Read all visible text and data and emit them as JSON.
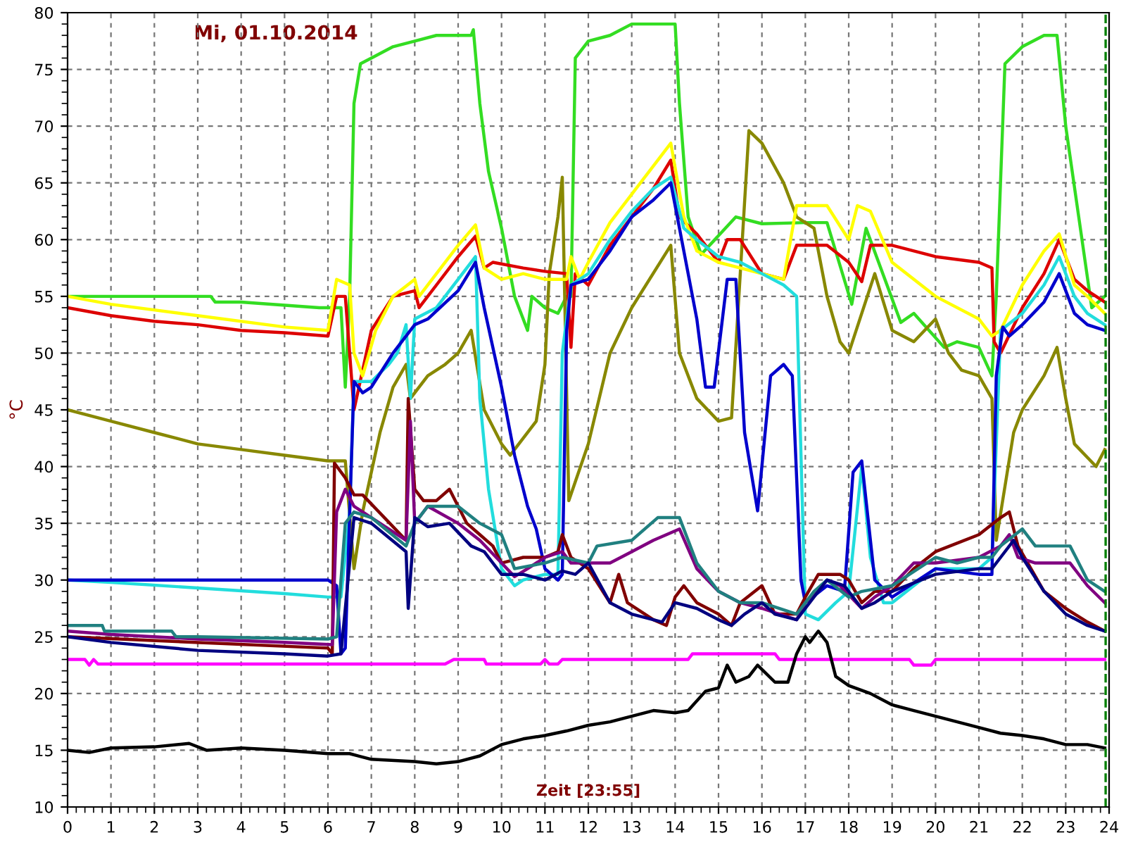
{
  "chart_data": {
    "type": "line",
    "title": "Mi, 01.10.2014",
    "xlabel": "Zeit [23:55]",
    "ylabel": "°C",
    "xlim": [
      0,
      24
    ],
    "ylim": [
      10,
      80
    ],
    "xticks": [
      0,
      1,
      2,
      3,
      4,
      5,
      6,
      7,
      8,
      9,
      10,
      11,
      12,
      13,
      14,
      15,
      16,
      17,
      18,
      19,
      20,
      21,
      22,
      23,
      24
    ],
    "yticks": [
      10,
      15,
      20,
      25,
      30,
      35,
      40,
      45,
      50,
      55,
      60,
      65,
      70,
      75,
      80
    ],
    "grid": true,
    "legend": false,
    "marker": "none",
    "line_style": "solid",
    "ref_lines": [
      {
        "axis": "x",
        "value": 23.92,
        "color": "#008000",
        "line_style": "dashed"
      }
    ],
    "series": [
      {
        "color": "#33dd22",
        "x": [
          0,
          3.3,
          3.4,
          4,
          5.8,
          6.3,
          6.4,
          6.5,
          6.6,
          6.75,
          7,
          7.5,
          8,
          8.5,
          9,
          9.3,
          9.35,
          9.5,
          9.7,
          10,
          10.3,
          10.6,
          10.7,
          11,
          11.3,
          11.5,
          11.6,
          11.7,
          12,
          12.5,
          13,
          14,
          14.1,
          14.3,
          14.6,
          15.4,
          16,
          17,
          17.5,
          18.07,
          18.4,
          19.2,
          19.5,
          20.2,
          20.5,
          21,
          21.3,
          21.4,
          21.6,
          22,
          22.5,
          22.8,
          23,
          23.3,
          23.6,
          23.9
        ],
        "values": [
          55,
          55,
          54.5,
          54.5,
          54,
          54,
          47,
          55,
          72,
          75.5,
          76,
          77,
          77.5,
          78,
          78,
          78,
          78.5,
          72,
          66,
          61,
          55,
          52,
          55,
          54,
          53.5,
          55,
          55,
          76,
          77.5,
          78,
          79,
          79,
          72,
          62,
          58.7,
          62,
          61.4,
          61.5,
          61.5,
          54.3,
          61,
          52.7,
          53.5,
          50.5,
          51,
          50.5,
          48,
          55,
          75.5,
          77,
          78,
          78,
          70,
          62,
          54,
          55
        ]
      },
      {
        "color": "#888800",
        "x": [
          0,
          1,
          2,
          3,
          4,
          5,
          6,
          6.4,
          6.6,
          6.8,
          7.2,
          7.5,
          7.8,
          7.9,
          8.3,
          8.7,
          9,
          9.3,
          9.6,
          10,
          10.2,
          10.8,
          11,
          11.1,
          11.3,
          11.4,
          11.55,
          12,
          12.5,
          13,
          13.9,
          14.1,
          14.5,
          15,
          15.3,
          15.7,
          16,
          16.5,
          16.8,
          17.2,
          17.5,
          17.8,
          18,
          18.6,
          19,
          19.5,
          20,
          20.3,
          20.6,
          21,
          21.3,
          21.4,
          21.8,
          22,
          22.5,
          22.8,
          23,
          23.2,
          23.7,
          23.9
        ],
        "values": [
          45,
          44,
          43,
          42,
          41.5,
          41,
          40.5,
          40.5,
          31,
          36,
          43,
          47,
          49,
          46,
          48,
          49,
          50,
          52,
          45,
          42,
          41,
          44,
          49,
          57,
          62,
          65.5,
          37,
          42,
          50,
          54,
          59.5,
          50,
          46,
          44,
          44.3,
          69.6,
          68.5,
          65,
          62,
          61,
          55,
          51,
          50,
          57,
          52,
          51,
          53,
          50,
          48.5,
          48,
          46,
          33.5,
          43,
          45,
          48,
          50.5,
          46,
          42,
          40,
          41.5
        ]
      },
      {
        "color": "#dd0000",
        "x": [
          0,
          1,
          2,
          3,
          4,
          5,
          6,
          6.2,
          6.4,
          6.6,
          7,
          7.5,
          8,
          8.1,
          8.5,
          9,
          9.4,
          9.6,
          9.8,
          10.5,
          11,
          11.5,
          11.6,
          11.7,
          12,
          12.5,
          13,
          13.5,
          13.9,
          14.1,
          14.5,
          15,
          15.2,
          15.5,
          16,
          16.5,
          16.8,
          17.5,
          18,
          18.3,
          18.5,
          19,
          20,
          21,
          21.3,
          21.35,
          21.5,
          22,
          22.5,
          22.85,
          23.2,
          23.5,
          23.9
        ],
        "values": [
          54,
          53.3,
          52.8,
          52.5,
          52,
          51.8,
          51.5,
          55,
          55,
          45,
          52,
          55,
          55.5,
          54,
          56,
          58.5,
          60.3,
          57.5,
          58,
          57.5,
          57.2,
          57,
          50.5,
          57,
          56,
          59.5,
          62,
          64.5,
          67,
          62,
          60.5,
          58,
          60,
          60,
          57,
          56.5,
          59.5,
          59.5,
          58,
          56.3,
          59.5,
          59.5,
          58.5,
          58,
          57.5,
          51,
          50,
          54,
          57,
          60,
          56.5,
          55.5,
          54.5
        ]
      },
      {
        "color": "#ffff00",
        "x": [
          0,
          1,
          3,
          5,
          6,
          6.2,
          6.5,
          6.6,
          6.8,
          7.1,
          7.5,
          8,
          8.1,
          8.5,
          9,
          9.4,
          9.6,
          10,
          10.5,
          11,
          11.5,
          11.6,
          11.8,
          12,
          12.5,
          13,
          13.5,
          13.9,
          14.2,
          14.5,
          15,
          16,
          16.5,
          16.8,
          17.5,
          18,
          18.2,
          18.5,
          19,
          20,
          21,
          21.3,
          21.5,
          22,
          22.5,
          22.85,
          23.2,
          23.5,
          23.9
        ],
        "values": [
          55,
          54.3,
          53.3,
          52.3,
          52,
          56.5,
          56,
          50,
          48,
          52,
          55,
          56.5,
          55,
          57,
          59.5,
          61.3,
          57.5,
          56.5,
          57,
          56.5,
          56.5,
          58.5,
          56.5,
          58,
          61.5,
          64,
          66.5,
          68.5,
          62,
          59,
          58,
          57,
          56.5,
          63,
          63,
          60,
          63,
          62.5,
          58,
          55,
          53,
          51.5,
          52,
          56,
          59,
          60.5,
          56,
          55,
          53.5
        ]
      },
      {
        "color": "#22dddd",
        "x": [
          0,
          1,
          3,
          5,
          6,
          6.3,
          6.5,
          6.6,
          7,
          7.4,
          7.6,
          7.8,
          7.9,
          8,
          8.5,
          9,
          9.4,
          9.5,
          9.7,
          10,
          10.3,
          10.5,
          11,
          11.3,
          11.4,
          11.6,
          12,
          12.5,
          13,
          13.5,
          13.9,
          14.2,
          14.5,
          15,
          15.5,
          16,
          16.5,
          16.8,
          17,
          17.3,
          17.7,
          18,
          18.3,
          18.5,
          18.8,
          19,
          20,
          21,
          21.3,
          21.5,
          22,
          22.5,
          22.85,
          23.2,
          23.5,
          23.9
        ],
        "values": [
          30,
          29.8,
          29.3,
          28.8,
          28.5,
          28.5,
          36,
          47.5,
          47.5,
          49,
          50,
          52.5,
          46,
          53,
          54,
          56.5,
          58.5,
          46,
          38,
          31,
          29.5,
          30,
          30.5,
          30.5,
          50,
          56,
          57,
          60,
          62.5,
          64.5,
          65.5,
          61,
          60,
          58.5,
          58,
          57,
          56,
          55,
          27,
          26.5,
          28,
          29,
          40,
          32,
          28,
          28,
          31,
          31,
          32,
          52,
          53.5,
          56,
          58.5,
          55,
          53.5,
          52.5
        ]
      },
      {
        "color": "#0000cc",
        "x": [
          0,
          6,
          6.2,
          6.3,
          6.4,
          6.6,
          6.8,
          7,
          7.5,
          8,
          8.3,
          9,
          9.4,
          9.6,
          10,
          10.3,
          10.5,
          10.6,
          10.8,
          11,
          11.3,
          11.4,
          11.5,
          11.6,
          12,
          12.5,
          13,
          13.5,
          13.9,
          14.2,
          14.5,
          14.7,
          14.9,
          15.2,
          15.4,
          15.6,
          15.9,
          16.2,
          16.5,
          16.7,
          16.9,
          17,
          17.5,
          17.9,
          18.1,
          18.3,
          18.6,
          19,
          20,
          21,
          21.3,
          21.4,
          21.55,
          21.7,
          22,
          22.5,
          22.85,
          23.2,
          23.5,
          23.9
        ],
        "values": [
          30,
          30,
          29.5,
          23.5,
          24,
          47.5,
          46.5,
          47,
          50,
          52.5,
          53,
          55.5,
          58,
          54,
          47,
          41,
          38,
          36.5,
          34.5,
          31,
          30,
          30.5,
          52,
          56,
          56.5,
          59,
          62,
          63.5,
          65,
          59,
          53,
          47,
          47,
          56.5,
          56.5,
          43,
          36.1,
          48,
          49,
          48,
          30,
          28,
          29.5,
          29,
          39.5,
          40.5,
          30,
          28.5,
          31,
          30.5,
          30.5,
          48,
          52.3,
          51.5,
          52.5,
          54.5,
          57,
          53.5,
          52.5,
          52
        ]
      },
      {
        "color": "#800000",
        "x": [
          0,
          6,
          6.1,
          6.15,
          6.4,
          6.6,
          6.8,
          7.8,
          7.85,
          8,
          8.2,
          8.5,
          8.8,
          9.2,
          9.5,
          9.8,
          10,
          10.5,
          11,
          11.3,
          11.4,
          11.6,
          12,
          12.5,
          12.7,
          12.9,
          13.5,
          13.8,
          14,
          14.2,
          14.5,
          15,
          15.3,
          15.5,
          16,
          16.3,
          16.8,
          17,
          17.3,
          17.8,
          18,
          18.3,
          18.6,
          19,
          19.5,
          20,
          21,
          21.5,
          21.7,
          21.9,
          22.2,
          22.5,
          23,
          23.5,
          23.9
        ],
        "values": [
          25,
          24,
          23.5,
          40.3,
          39,
          37.5,
          37.5,
          33.5,
          46,
          38,
          37,
          37,
          38,
          35,
          34,
          33,
          31.5,
          32,
          32,
          32.5,
          34,
          32,
          31,
          28,
          30.5,
          28,
          26.5,
          26,
          28.5,
          29.5,
          28,
          27,
          26,
          28,
          29.5,
          27,
          27,
          28.5,
          30.5,
          30.5,
          30,
          28,
          29,
          29,
          31,
          32.5,
          34,
          35.5,
          36,
          33,
          31,
          29,
          27.5,
          26.3,
          25.5
        ]
      },
      {
        "color": "#800080",
        "x": [
          0,
          1,
          3,
          5,
          6.1,
          6.2,
          6.4,
          6.6,
          7,
          7.8,
          7.9,
          8,
          8.3,
          9,
          9.5,
          10,
          10.3,
          10.6,
          11,
          11.4,
          11.6,
          12,
          12.5,
          13,
          13.5,
          14.1,
          14.5,
          15,
          15.5,
          16,
          16.8,
          17,
          17.5,
          17.8,
          18.3,
          18.6,
          19,
          19.5,
          20,
          21,
          21.5,
          21.7,
          21.9,
          22.3,
          22.6,
          23.1,
          23.5,
          23.9
        ],
        "values": [
          25.5,
          25.2,
          24.8,
          24.5,
          24.3,
          36,
          38,
          36.5,
          35.5,
          33.5,
          44,
          35,
          36.5,
          35,
          33.5,
          31.5,
          30.3,
          31,
          32,
          32.5,
          31.5,
          31.5,
          31.5,
          32.5,
          33.5,
          34.5,
          31,
          29,
          28,
          27.5,
          26.5,
          28,
          30,
          29.5,
          27.5,
          28.5,
          29.5,
          31.5,
          31.5,
          32,
          33,
          34,
          32,
          31.5,
          31.5,
          31.5,
          29.5,
          28
        ]
      },
      {
        "color": "#208080",
        "x": [
          0,
          0.8,
          0.85,
          2.4,
          2.5,
          3,
          6,
          6.2,
          6.4,
          6.6,
          7,
          7.8,
          8,
          8.3,
          9,
          9.5,
          10,
          10.3,
          11,
          11.4,
          12,
          12.2,
          13,
          13.6,
          14.1,
          14.5,
          15,
          15.5,
          16,
          16.8,
          17.2,
          17.5,
          18,
          18.3,
          19,
          20,
          20.5,
          21,
          21.3,
          21.5,
          22,
          22.3,
          23.1,
          23.5,
          23.9
        ],
        "values": [
          26,
          26,
          25.5,
          25.5,
          25,
          25,
          24.8,
          25,
          35,
          36,
          35.5,
          33,
          35,
          36.5,
          36.5,
          35,
          34,
          31,
          31.5,
          32,
          31.5,
          33,
          33.5,
          35.5,
          35.5,
          31.5,
          29,
          28,
          28,
          27,
          29,
          30,
          28.5,
          29,
          29.5,
          32,
          31.5,
          32,
          32,
          33,
          34.5,
          33,
          33,
          30,
          29
        ]
      },
      {
        "color": "#000080",
        "x": [
          0,
          1,
          3,
          5,
          6,
          6.3,
          6.6,
          7,
          7.8,
          7.85,
          8,
          8.3,
          8.8,
          9.3,
          9.6,
          10,
          10.5,
          11,
          11.4,
          11.7,
          12,
          12.5,
          13,
          13.5,
          13.7,
          14,
          14.5,
          15,
          15.3,
          15.6,
          16,
          16.3,
          16.8,
          17,
          17.5,
          17.9,
          18.3,
          18.6,
          19,
          20,
          21,
          21.3,
          21.5,
          21.8,
          22,
          22.5,
          23,
          23.5,
          23.9
        ],
        "values": [
          25,
          24.5,
          23.8,
          23.5,
          23.3,
          23.5,
          35.5,
          35,
          32.5,
          27.5,
          35.5,
          34.7,
          35,
          33,
          32.5,
          30.5,
          30.5,
          30,
          30.8,
          30.5,
          31.5,
          28,
          27,
          26.5,
          26.3,
          28,
          27.5,
          26.5,
          26,
          27,
          28,
          27,
          26.5,
          27.5,
          30,
          29.5,
          27.5,
          28,
          29,
          30.5,
          31,
          31,
          32,
          33.5,
          32,
          29,
          27,
          26,
          25.5
        ]
      },
      {
        "color": "#ff00ff",
        "x": [
          0,
          0.4,
          0.5,
          0.6,
          0.7,
          8.7,
          8.9,
          9.6,
          9.65,
          10.9,
          11,
          11.1,
          11.3,
          11.4,
          14.3,
          14.4,
          16.3,
          16.4,
          19.4,
          19.5,
          19.9,
          20,
          23.9
        ],
        "values": [
          23,
          23,
          22.5,
          23,
          22.6,
          22.6,
          23,
          23,
          22.6,
          22.6,
          23,
          22.6,
          22.6,
          23,
          23,
          23.5,
          23.5,
          23,
          23,
          22.5,
          22.5,
          23,
          23
        ]
      },
      {
        "color": "#000000",
        "x": [
          0,
          0.5,
          1,
          2,
          2.8,
          3.2,
          4,
          5,
          6,
          6.5,
          7,
          8,
          8.5,
          9,
          9.5,
          10,
          10.5,
          11,
          11.5,
          12,
          12.5,
          13,
          13.5,
          14,
          14.3,
          14.7,
          15,
          15.2,
          15.4,
          15.7,
          15.9,
          16.3,
          16.6,
          16.8,
          17,
          17.1,
          17.3,
          17.5,
          17.7,
          18,
          18.5,
          19,
          19.5,
          20,
          20.5,
          21,
          21.5,
          22,
          22.5,
          23,
          23.5,
          23.9
        ],
        "values": [
          15,
          14.8,
          15.2,
          15.3,
          15.6,
          15,
          15.2,
          15,
          14.7,
          14.7,
          14.2,
          14,
          13.8,
          14,
          14.5,
          15.5,
          16,
          16.3,
          16.7,
          17.2,
          17.5,
          18,
          18.5,
          18.3,
          18.5,
          20.2,
          20.5,
          22.5,
          21,
          21.5,
          22.5,
          21,
          21,
          23.5,
          25,
          24.5,
          25.5,
          24.5,
          21.5,
          20.7,
          20,
          19,
          18.5,
          18,
          17.5,
          17,
          16.5,
          16.3,
          16,
          15.5,
          15.5,
          15.2
        ]
      }
    ]
  }
}
